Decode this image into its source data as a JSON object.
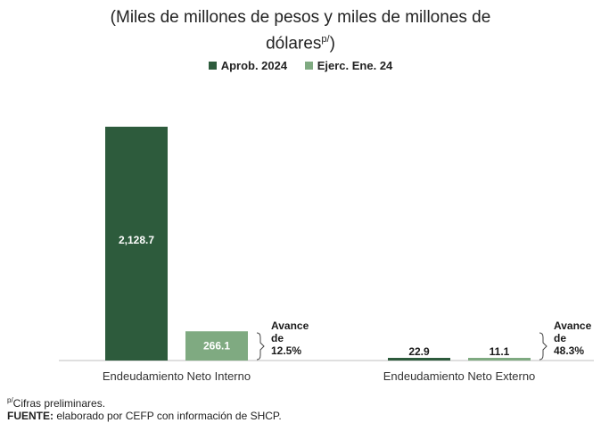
{
  "title": {
    "line1": "(Miles de millones de pesos y miles de millones de",
    "line2": "dólares",
    "line2_sup": "p/",
    "line2_end": ")"
  },
  "colors": {
    "dark": "#2d5b3c",
    "light": "#7faa81",
    "axis": "#bfbfbf"
  },
  "chart_data": {
    "type": "bar",
    "categories": [
      "Endeudamiento Neto Interno",
      "Endeudamiento Neto Externo"
    ],
    "series": [
      {
        "name": "Aprob. 2024",
        "values": [
          2128.7,
          22.9
        ],
        "labels": [
          "2,128.7",
          "22.9"
        ]
      },
      {
        "name": "Ejerc. Ene. 24",
        "values": [
          266.1,
          11.1
        ],
        "labels": [
          "266.1",
          "11.1"
        ]
      }
    ],
    "annotations": [
      {
        "line1": "Avance",
        "line2": "de",
        "line3": "12.5%"
      },
      {
        "line1": "Avance",
        "line2": "de",
        "line3": "48.3%"
      }
    ],
    "legend_position": "top-center",
    "grid": false
  },
  "footnotes": {
    "note_sup": "p/",
    "note_text": "Cifras preliminares.",
    "source_label": "FUENTE:",
    "source_text": " elaborado por CEFP con información de SHCP."
  }
}
